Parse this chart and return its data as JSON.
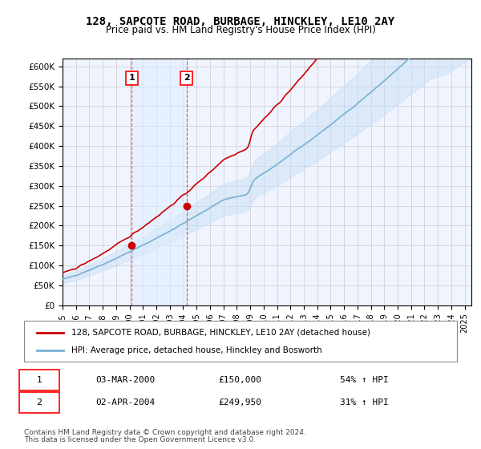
{
  "title": "128, SAPCOTE ROAD, BURBAGE, HINCKLEY, LE10 2AY",
  "subtitle": "Price paid vs. HM Land Registry's House Price Index (HPI)",
  "ylim": [
    0,
    620000
  ],
  "yticks": [
    0,
    50000,
    100000,
    150000,
    200000,
    250000,
    300000,
    350000,
    400000,
    450000,
    500000,
    550000,
    600000
  ],
  "ytick_labels": [
    "£0",
    "£50K",
    "£100K",
    "£150K",
    "£200K",
    "£250K",
    "£300K",
    "£350K",
    "£400K",
    "£450K",
    "£500K",
    "£550K",
    "£600K"
  ],
  "background_color": "#ffffff",
  "grid_color": "#cccccc",
  "hpi_color": "#aaccee",
  "price_color": "#cc0000",
  "sale1_date": 2000.17,
  "sale1_price": 150000,
  "sale1_label": "1",
  "sale2_date": 2004.25,
  "sale2_price": 249950,
  "sale2_label": "2",
  "legend_line1": "128, SAPCOTE ROAD, BURBAGE, HINCKLEY, LE10 2AY (detached house)",
  "legend_line2": "HPI: Average price, detached house, Hinckley and Bosworth",
  "note_line1": "Contains HM Land Registry data © Crown copyright and database right 2024.",
  "note_line2": "This data is licensed under the Open Government Licence v3.0.",
  "table_row1": [
    "1",
    "03-MAR-2000",
    "£150,000",
    "54% ↑ HPI"
  ],
  "table_row2": [
    "2",
    "02-APR-2004",
    "£249,950",
    "31% ↑ HPI"
  ],
  "xmin": 1995,
  "xmax": 2025.5
}
